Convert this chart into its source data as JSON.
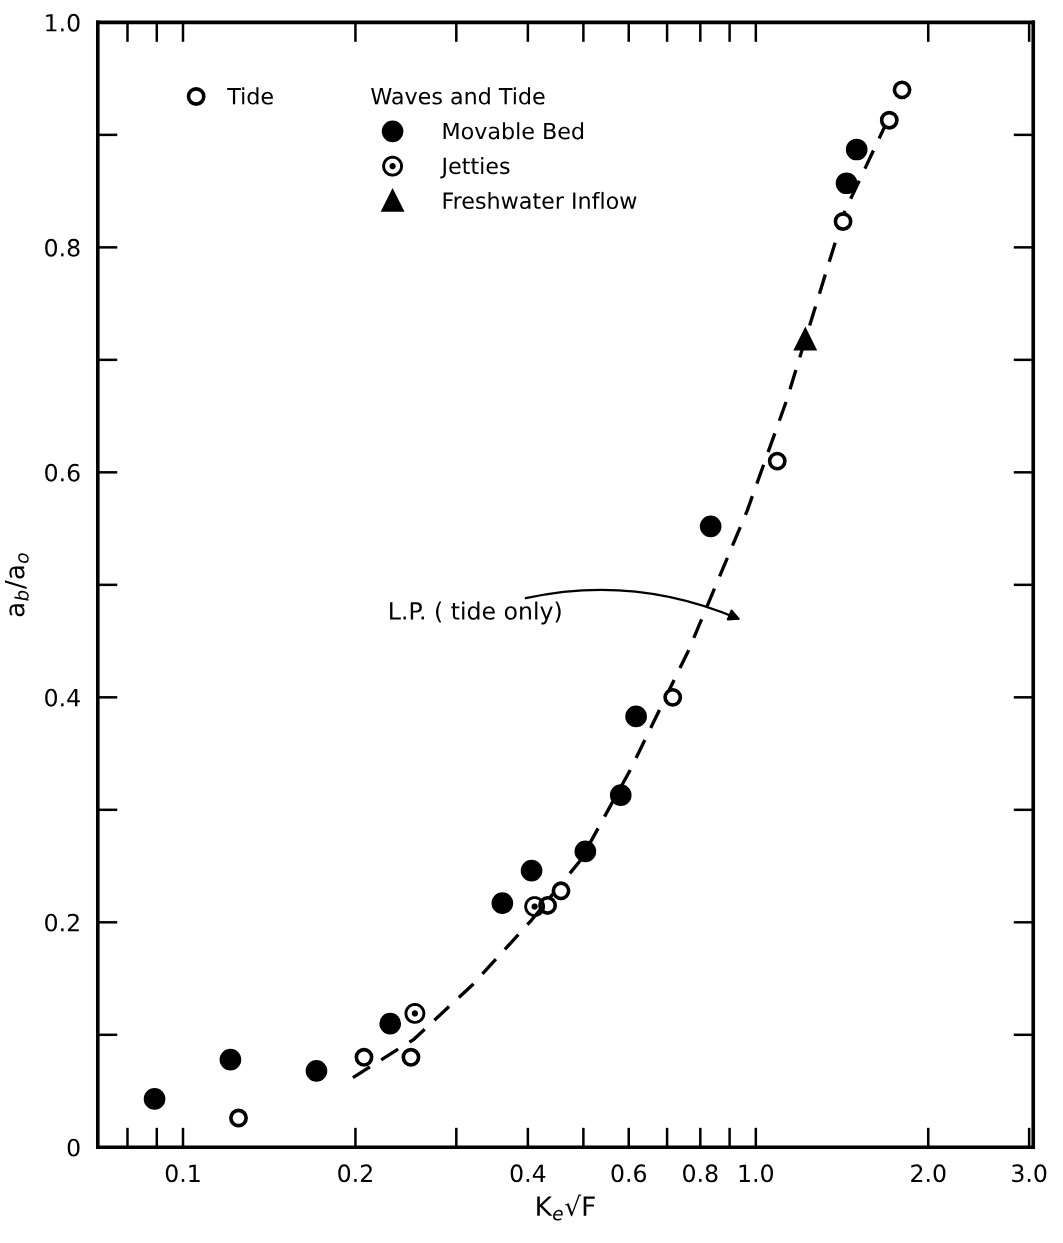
{
  "chart_data": {
    "type": "scatter",
    "xlabel": "K$_{e}$√F",
    "ylabel": "a$_{b}$/a$_{o}$",
    "log": "x",
    "xlim": [
      0.071,
      3.05
    ],
    "ylim": [
      0,
      1.0
    ],
    "xticks": [
      0.1,
      0.2,
      0.4,
      0.6,
      0.8,
      {
        "value": 1.0,
        "label": "1.0"
      },
      {
        "value": 2.0,
        "label": "2.0"
      },
      {
        "value": 3.0,
        "label": "3.0"
      }
    ],
    "yticks": [
      0,
      0.2,
      0.4,
      0.6,
      0.8,
      {
        "value": 1.0,
        "label": "1.0"
      }
    ],
    "grid": false,
    "legend": "top left",
    "legend_title": "Waves and Tide",
    "series": [
      {
        "name": "Tide",
        "color": "#ffffff",
        "marker": "circle",
        "x": [
          0.125,
          0.207,
          0.25,
          0.433,
          0.457,
          0.716,
          1.09,
          1.42,
          1.71,
          1.8
        ],
        "values": [
          0.026,
          0.08,
          0.08,
          0.215,
          0.228,
          0.4,
          0.61,
          0.823,
          0.913,
          0.94
        ]
      },
      {
        "name": "Movable Bed",
        "color": "#000000",
        "marker": "circle",
        "x": [
          0.0892,
          0.121,
          0.171,
          0.23,
          0.361,
          0.406,
          0.504,
          0.581,
          0.618,
          0.834,
          1.44,
          1.5
        ],
        "values": [
          0.043,
          0.078,
          0.068,
          0.11,
          0.217,
          0.246,
          0.263,
          0.313,
          0.383,
          0.552,
          0.857,
          0.887
        ]
      },
      {
        "name": "Jetties",
        "color": "#000000",
        "marker": "dotcircle",
        "x": [
          0.254,
          0.411
        ],
        "values": [
          0.119,
          0.214
        ]
      },
      {
        "name": "Freshwater Inflow",
        "color": "#000000",
        "marker": "triangle",
        "x": [
          1.22
        ],
        "values": [
          0.718
        ]
      },
      {
        "type": "line",
        "color": "#000000",
        "line_style": "dashed",
        "marker": "none",
        "x": [
          0.198,
          0.253,
          0.321,
          0.406,
          0.494,
          0.603,
          0.762,
          0.966,
          1.13,
          1.22,
          1.43,
          1.71
        ],
        "values": [
          0.062,
          0.096,
          0.145,
          0.202,
          0.255,
          0.335,
          0.441,
          0.566,
          0.663,
          0.718,
          0.832,
          0.916
        ]
      }
    ],
    "annotations": [
      "L.P. ( tide only)"
    ]
  }
}
